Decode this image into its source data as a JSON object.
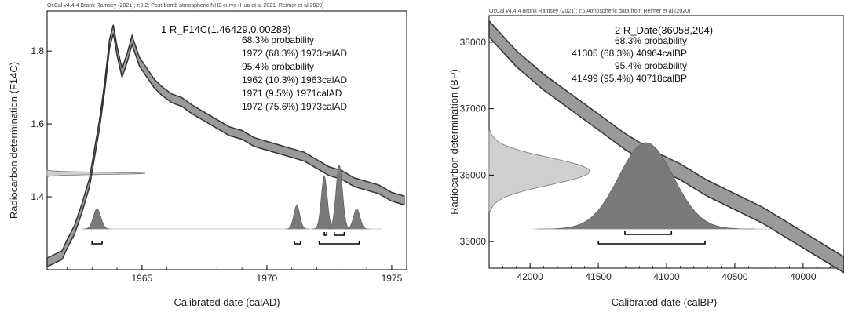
{
  "chart_data": [
    {
      "type": "radiocarbon-calibration",
      "header": "OxCal v4.4.4 Bronk Ramsey (2021); r:0.2: Post-bomb atmospheric NH2 curve (Hua et al 2021. Reimer et al 2020)",
      "result_title": "1 R_F14C(1.46429,0.00288)",
      "result_lines": [
        "68.3% probability",
        "1972 (68.3%) 1973calAD",
        "95.4% probability",
        "1962 (10.3%) 1963calAD",
        "1971 (9.5%) 1971calAD",
        "1972 (75.6%) 1973calAD"
      ],
      "xlabel": "Calibrated date (calAD)",
      "ylabel": "Radiocarbon determination (F14C)",
      "xlim": [
        1961.2,
        1975.6
      ],
      "ylim": [
        1.2,
        1.91
      ],
      "x_ticks": [
        1965,
        1970,
        1975
      ],
      "y_ticks": [
        1.4,
        1.6,
        1.8
      ],
      "curve": {
        "x": [
          1961.2,
          1961.5,
          1961.8,
          1962.0,
          1962.3,
          1962.6,
          1962.9,
          1963.1,
          1963.3,
          1963.5,
          1963.7,
          1963.85,
          1964.0,
          1964.2,
          1964.4,
          1964.6,
          1964.9,
          1965.2,
          1965.5,
          1965.8,
          1966.2,
          1966.6,
          1967.0,
          1967.5,
          1968.0,
          1968.5,
          1969.0,
          1969.5,
          1970.0,
          1970.5,
          1971.0,
          1971.5,
          1972.0,
          1972.5,
          1973.0,
          1973.5,
          1974.0,
          1974.5,
          1975.0,
          1975.5
        ],
        "y": [
          1.22,
          1.23,
          1.24,
          1.27,
          1.31,
          1.37,
          1.44,
          1.52,
          1.6,
          1.7,
          1.82,
          1.86,
          1.8,
          1.74,
          1.78,
          1.83,
          1.77,
          1.74,
          1.71,
          1.69,
          1.67,
          1.66,
          1.64,
          1.62,
          1.6,
          1.58,
          1.57,
          1.55,
          1.54,
          1.53,
          1.52,
          1.51,
          1.49,
          1.47,
          1.46,
          1.44,
          1.43,
          1.42,
          1.4,
          1.39
        ],
        "halfwidth": 0.012
      },
      "measurement": {
        "mean": 1.46429,
        "sigma": 0.00288
      },
      "posterior_peaks": [
        {
          "center": 1963.2,
          "height": 0.055,
          "width": 0.15
        },
        {
          "center": 1971.2,
          "height": 0.065,
          "width": 0.12
        },
        {
          "center": 1972.3,
          "height": 0.145,
          "width": 0.12
        },
        {
          "center": 1972.9,
          "height": 0.175,
          "width": 0.13
        },
        {
          "center": 1973.6,
          "height": 0.055,
          "width": 0.13
        }
      ],
      "ranges_68": [
        [
          1972.3,
          1972.4
        ],
        [
          1972.7,
          1973.1
        ]
      ],
      "ranges_95": [
        [
          1963.0,
          1963.4
        ],
        [
          1971.1,
          1971.35
        ],
        [
          1972.1,
          1973.7
        ]
      ]
    },
    {
      "type": "radiocarbon-calibration",
      "header": "OxCal v4.4.4 Bronk Ramsey (2021); r:5 Atmospheric data from Reimer et al (2020)",
      "result_title": "2 R_Date(36058,204)",
      "result_lines": [
        "68.3% probability",
        "41305 (68.3%) 40964calBP",
        "95.4% probability",
        "41499 (95.4%) 40718calBP"
      ],
      "xlabel": "Calibrated date (calBP)",
      "ylabel": "Radiocarbon determination (BP)",
      "xlim": [
        42300,
        39700
      ],
      "ylim": [
        34600,
        38400
      ],
      "x_ticks": [
        42000,
        41500,
        41000,
        40500,
        40000
      ],
      "y_ticks": [
        35000,
        36000,
        37000,
        38000
      ],
      "curve": {
        "x": [
          42300,
          42100,
          41900,
          41700,
          41500,
          41300,
          41100,
          40900,
          40700,
          40500,
          40300,
          40100,
          39900,
          39700
        ],
        "y": [
          38200,
          37750,
          37400,
          37100,
          36800,
          36500,
          36250,
          36050,
          35800,
          35600,
          35400,
          35150,
          34900,
          34650
        ],
        "halfwidth": 120
      },
      "measurement": {
        "mean": 36058,
        "sigma": 204
      },
      "posterior_peaks": [
        {
          "center": 41150,
          "height": 1300,
          "width": 200
        }
      ],
      "ranges_68": [
        [
          41305,
          40964
        ]
      ],
      "ranges_95": [
        [
          41499,
          40718
        ]
      ]
    }
  ]
}
